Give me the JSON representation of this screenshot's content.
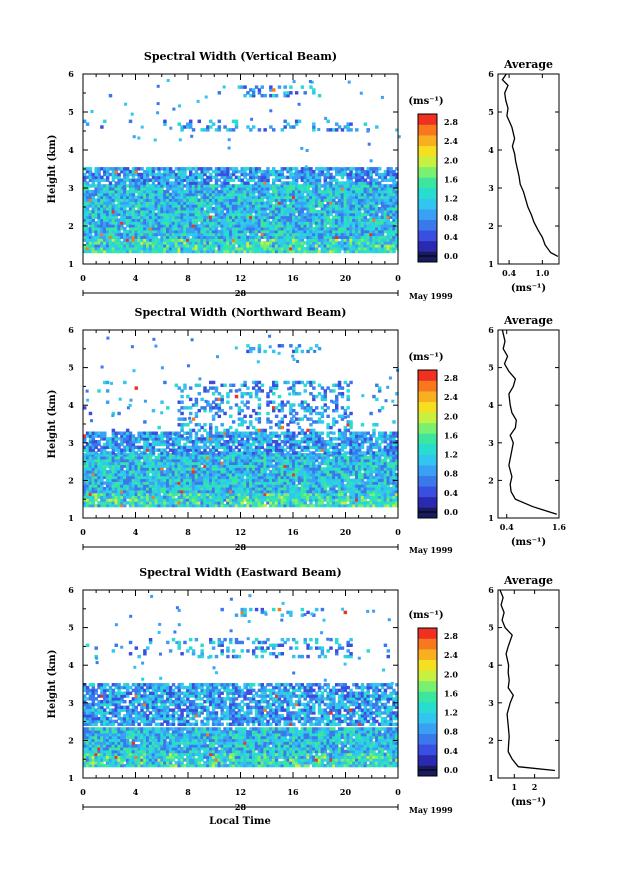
{
  "panels": [
    {
      "title": "Spectral Width (Vertical Beam)",
      "y_label": "Height (km)",
      "y_ticks": [
        "1",
        "2",
        "3",
        "4",
        "5",
        "6"
      ],
      "x_ticks": [
        "0",
        "4",
        "8",
        "12",
        "16",
        "20",
        "0"
      ],
      "day_label": "28",
      "month_label": "May 1999",
      "colorbar_unit": "(ms⁻¹)",
      "colorbar_ticks": [
        "0.0",
        "0.4",
        "0.8",
        "1.2",
        "1.6",
        "2.0",
        "2.4",
        "2.8"
      ],
      "avg_title": "Average",
      "avg_x_ticks": [
        "0.4",
        "1.0"
      ],
      "avg_x_label": "(ms⁻¹)"
    },
    {
      "title": "Spectral Width (Northward Beam)",
      "y_label": "Height (km)",
      "y_ticks": [
        "1",
        "2",
        "3",
        "4",
        "5",
        "6"
      ],
      "x_ticks": [
        "0",
        "4",
        "8",
        "12",
        "16",
        "20",
        "0"
      ],
      "day_label": "28",
      "month_label": "May 1999",
      "colorbar_unit": "(ms⁻¹)",
      "colorbar_ticks": [
        "0.0",
        "0.4",
        "0.8",
        "1.2",
        "1.6",
        "2.0",
        "2.4",
        "2.8"
      ],
      "avg_title": "Average",
      "avg_x_ticks": [
        "0.4",
        "1.6"
      ],
      "avg_x_label": "(ms⁻¹)"
    },
    {
      "title": "Spectral Width (Eastward Beam)",
      "y_label": "Height (km)",
      "y_ticks": [
        "1",
        "2",
        "3",
        "4",
        "5",
        "6"
      ],
      "x_ticks": [
        "0",
        "4",
        "8",
        "12",
        "16",
        "20",
        "0"
      ],
      "day_label": "28",
      "month_label": "May 1999",
      "colorbar_unit": "(ms⁻¹)",
      "colorbar_ticks": [
        "0.0",
        "0.4",
        "0.8",
        "1.2",
        "1.6",
        "2.0",
        "2.4",
        "2.8"
      ],
      "avg_title": "Average",
      "avg_x_ticks": [
        "1",
        "2"
      ],
      "avg_x_label": "(ms⁻¹)"
    }
  ],
  "bottom_x_label": "Local Time",
  "chart_data": [
    {
      "type": "heatmap",
      "title": "Spectral Width (Vertical Beam)",
      "ylabel": "Height (km)",
      "xlim": [
        0,
        24
      ],
      "ylim": [
        1,
        6
      ],
      "colorbar": {
        "label": "(ms⁻¹)",
        "range": [
          0.0,
          2.8
        ]
      },
      "echo_regions_km": [
        [
          1.3,
          3.1
        ],
        [
          3.1,
          3.5
        ],
        [
          4.5,
          4.8
        ],
        [
          5.4,
          5.7
        ]
      ],
      "average_profile": {
        "title": "Average",
        "xlabel": "(ms⁻¹)",
        "xlim": [
          0.2,
          1.3
        ],
        "x": [
          1.28,
          1.15,
          1.05,
          1.0,
          0.92,
          0.85,
          0.8,
          0.74,
          0.7,
          0.66,
          0.6,
          0.58,
          0.55,
          0.52,
          0.5,
          0.46,
          0.5,
          0.45,
          0.36,
          0.38,
          0.34,
          0.32,
          0.38,
          0.28,
          0.35
        ],
        "height_km": [
          1.2,
          1.3,
          1.5,
          1.7,
          1.9,
          2.1,
          2.3,
          2.5,
          2.7,
          2.9,
          3.1,
          3.3,
          3.5,
          3.7,
          3.9,
          4.1,
          4.3,
          4.6,
          4.9,
          5.1,
          5.3,
          5.5,
          5.7,
          5.85,
          6.0
        ]
      }
    },
    {
      "type": "heatmap",
      "title": "Spectral Width (Northward Beam)",
      "ylabel": "Height (km)",
      "xlim": [
        0,
        24
      ],
      "ylim": [
        1,
        6
      ],
      "colorbar": {
        "label": "(ms⁻¹)",
        "range": [
          0.0,
          2.8
        ]
      },
      "echo_regions_km": [
        [
          1.3,
          2.7
        ],
        [
          2.7,
          3.3
        ],
        [
          3.3,
          4.6
        ],
        [
          5.4,
          5.6
        ]
      ],
      "average_profile": {
        "title": "Average",
        "xlabel": "(ms⁻¹)",
        "xlim": [
          0.2,
          1.6
        ],
        "x": [
          1.55,
          1.0,
          0.6,
          0.5,
          0.48,
          0.52,
          0.45,
          0.5,
          0.55,
          0.48,
          0.6,
          0.62,
          0.52,
          0.48,
          0.45,
          0.55,
          0.6,
          0.45,
          0.35,
          0.42,
          0.32,
          0.36,
          0.3
        ],
        "height_km": [
          1.1,
          1.3,
          1.5,
          1.7,
          1.9,
          2.1,
          2.4,
          2.7,
          3.0,
          3.2,
          3.4,
          3.6,
          3.8,
          4.0,
          4.3,
          4.5,
          4.7,
          4.9,
          5.1,
          5.3,
          5.5,
          5.7,
          6.0
        ]
      }
    },
    {
      "type": "heatmap",
      "title": "Spectral Width (Eastward Beam)",
      "ylabel": "Height (km)",
      "xlim": [
        0,
        24
      ],
      "ylim": [
        1,
        6
      ],
      "colorbar": {
        "label": "(ms⁻¹)",
        "range": [
          0.0,
          2.8
        ]
      },
      "echo_regions_km": [
        [
          1.3,
          2.3
        ],
        [
          2.4,
          3.5
        ],
        [
          4.2,
          4.7
        ],
        [
          5.3,
          5.5
        ]
      ],
      "average_profile": {
        "title": "Average",
        "xlabel": "(ms⁻¹)",
        "xlim": [
          0.2,
          3.2
        ],
        "x": [
          3.0,
          1.2,
          0.9,
          0.7,
          0.72,
          0.75,
          0.7,
          0.65,
          0.8,
          0.95,
          0.7,
          0.75,
          0.7,
          0.72,
          0.6,
          0.7,
          0.9,
          0.55,
          0.4,
          0.5,
          0.35,
          0.45,
          0.3
        ],
        "height_km": [
          1.2,
          1.3,
          1.5,
          1.7,
          1.9,
          2.1,
          2.4,
          2.7,
          3.0,
          3.2,
          3.4,
          3.6,
          3.8,
          4.0,
          4.3,
          4.5,
          4.8,
          5.0,
          5.2,
          5.4,
          5.6,
          5.8,
          6.0
        ]
      }
    }
  ]
}
